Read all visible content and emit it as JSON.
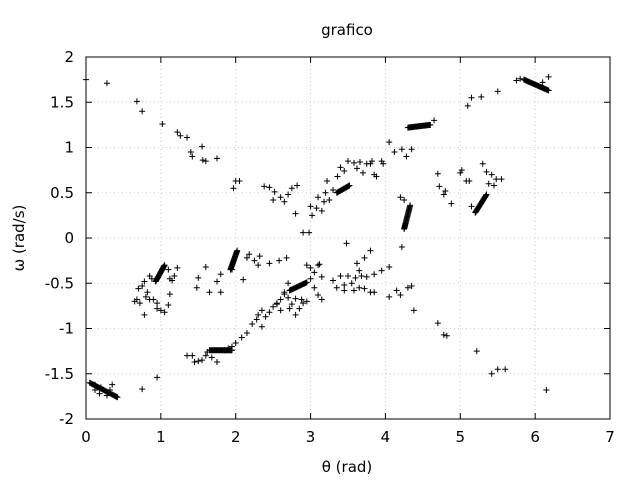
{
  "chart_data": {
    "type": "scatter",
    "title": "grafico",
    "xlabel": "θ (rad)",
    "ylabel": "ω (rad/s)",
    "xlim": [
      0,
      7
    ],
    "ylim": [
      -2,
      2
    ],
    "xticks": [
      "0",
      "1",
      "2",
      "3",
      "4",
      "5",
      "6",
      "7"
    ],
    "yticks": [
      "-2",
      "-1.5",
      "-1",
      "-0.5",
      "0",
      "0.5",
      "1",
      "1.5",
      "2"
    ],
    "grid": true,
    "marker": "plus",
    "clusters": [
      {
        "x0": 0.05,
        "y0": -1.6,
        "x1": 0.42,
        "y1": -1.76,
        "n": 30
      },
      {
        "x0": 0.93,
        "y0": -0.48,
        "x1": 1.05,
        "y1": -0.3,
        "n": 25
      },
      {
        "x0": 1.65,
        "y0": -1.24,
        "x1": 1.95,
        "y1": -1.24,
        "n": 28
      },
      {
        "x0": 1.93,
        "y0": -0.35,
        "x1": 2.02,
        "y1": -0.14,
        "n": 25
      },
      {
        "x0": 2.72,
        "y0": -0.58,
        "x1": 2.95,
        "y1": -0.49,
        "n": 20
      },
      {
        "x0": 3.35,
        "y0": 0.5,
        "x1": 3.52,
        "y1": 0.58,
        "n": 18
      },
      {
        "x0": 4.25,
        "y0": 0.1,
        "x1": 4.33,
        "y1": 0.36,
        "n": 25
      },
      {
        "x0": 4.3,
        "y0": 1.22,
        "x1": 4.6,
        "y1": 1.25,
        "n": 28
      },
      {
        "x0": 5.2,
        "y0": 0.28,
        "x1": 5.35,
        "y1": 0.48,
        "n": 25
      },
      {
        "x0": 5.85,
        "y0": 1.75,
        "x1": 6.18,
        "y1": 1.63,
        "n": 30
      }
    ],
    "points": [
      [
        0.0,
        1.75
      ],
      [
        0.28,
        1.71
      ],
      [
        0.68,
        1.51
      ],
      [
        0.75,
        1.4
      ],
      [
        1.02,
        1.26
      ],
      [
        1.22,
        1.17
      ],
      [
        1.26,
        1.13
      ],
      [
        1.35,
        1.11
      ],
      [
        1.4,
        0.95
      ],
      [
        1.42,
        0.9
      ],
      [
        1.55,
        1.01
      ],
      [
        1.56,
        0.86
      ],
      [
        1.6,
        0.85
      ],
      [
        1.75,
        0.88
      ],
      [
        1.97,
        0.55
      ],
      [
        2.0,
        0.63
      ],
      [
        2.05,
        0.63
      ],
      [
        2.38,
        0.57
      ],
      [
        2.45,
        0.56
      ],
      [
        2.52,
        0.51
      ],
      [
        2.6,
        0.45
      ],
      [
        2.7,
        0.48
      ],
      [
        2.75,
        0.55
      ],
      [
        2.82,
        0.58
      ],
      [
        2.5,
        0.42
      ],
      [
        2.65,
        0.4
      ],
      [
        2.8,
        0.27
      ],
      [
        2.9,
        0.06
      ],
      [
        2.98,
        0.06
      ],
      [
        3.0,
        0.35
      ],
      [
        3.02,
        0.25
      ],
      [
        3.08,
        0.33
      ],
      [
        3.1,
        0.45
      ],
      [
        3.15,
        0.3
      ],
      [
        3.18,
        0.4
      ],
      [
        3.2,
        0.5
      ],
      [
        3.22,
        0.63
      ],
      [
        3.25,
        0.42
      ],
      [
        3.3,
        0.53
      ],
      [
        3.36,
        0.68
      ],
      [
        3.4,
        0.78
      ],
      [
        3.45,
        0.74
      ],
      [
        3.5,
        0.85
      ],
      [
        3.58,
        0.83
      ],
      [
        3.62,
        0.77
      ],
      [
        3.66,
        0.84
      ],
      [
        3.7,
        0.72
      ],
      [
        3.75,
        0.82
      ],
      [
        3.8,
        0.82
      ],
      [
        3.82,
        0.85
      ],
      [
        3.85,
        0.7
      ],
      [
        3.88,
        0.68
      ],
      [
        3.95,
        0.85
      ],
      [
        3.97,
        0.82
      ],
      [
        4.05,
        1.06
      ],
      [
        4.12,
        0.95
      ],
      [
        4.22,
        0.98
      ],
      [
        4.28,
        0.9
      ],
      [
        4.35,
        0.98
      ],
      [
        4.65,
        1.3
      ],
      [
        4.7,
        0.71
      ],
      [
        4.72,
        0.57
      ],
      [
        4.78,
        0.48
      ],
      [
        4.8,
        0.52
      ],
      [
        4.88,
        0.38
      ],
      [
        5.0,
        0.72
      ],
      [
        5.02,
        0.75
      ],
      [
        5.08,
        0.63
      ],
      [
        5.12,
        0.63
      ],
      [
        5.1,
        1.46
      ],
      [
        5.15,
        1.55
      ],
      [
        5.28,
        1.56
      ],
      [
        5.5,
        1.62
      ],
      [
        5.3,
        0.82
      ],
      [
        5.35,
        0.73
      ],
      [
        5.42,
        0.7
      ],
      [
        5.48,
        0.65
      ],
      [
        5.55,
        0.65
      ],
      [
        5.45,
        0.58
      ],
      [
        5.38,
        0.6
      ],
      [
        5.15,
        0.35
      ],
      [
        4.2,
        0.45
      ],
      [
        4.25,
        0.42
      ],
      [
        4.22,
        -0.1
      ],
      [
        4.15,
        -0.58
      ],
      [
        4.2,
        -0.63
      ],
      [
        4.3,
        -0.55
      ],
      [
        4.35,
        -0.53
      ],
      [
        4.38,
        -0.8
      ],
      [
        4.05,
        -0.65
      ],
      [
        4.7,
        -0.94
      ],
      [
        4.78,
        -1.07
      ],
      [
        4.82,
        -1.08
      ],
      [
        5.22,
        -1.25
      ],
      [
        5.42,
        -1.5
      ],
      [
        5.5,
        -1.45
      ],
      [
        5.6,
        -1.45
      ],
      [
        6.15,
        -1.68
      ],
      [
        4.05,
        -0.32
      ],
      [
        3.95,
        -0.36
      ],
      [
        3.85,
        -0.4
      ],
      [
        3.75,
        -0.43
      ],
      [
        3.68,
        -0.42
      ],
      [
        3.65,
        -0.36
      ],
      [
        3.6,
        -0.44
      ],
      [
        3.55,
        -0.5
      ],
      [
        3.5,
        -0.42
      ],
      [
        3.45,
        -0.52
      ],
      [
        3.4,
        -0.42
      ],
      [
        3.35,
        -0.55
      ],
      [
        3.3,
        -0.47
      ],
      [
        3.45,
        -0.58
      ],
      [
        3.58,
        -0.58
      ],
      [
        3.65,
        -0.55
      ],
      [
        3.72,
        -0.56
      ],
      [
        3.8,
        -0.6
      ],
      [
        3.85,
        -0.6
      ],
      [
        3.62,
        -0.28
      ],
      [
        3.72,
        -0.22
      ],
      [
        3.8,
        -0.14
      ],
      [
        3.48,
        -0.06
      ],
      [
        3.12,
        -0.29
      ],
      [
        3.15,
        -0.43
      ],
      [
        3.1,
        -0.3
      ],
      [
        3.05,
        -0.38
      ],
      [
        3.0,
        -0.45
      ],
      [
        3.05,
        -0.55
      ],
      [
        3.1,
        -0.63
      ],
      [
        3.15,
        -0.68
      ],
      [
        2.95,
        -0.7
      ],
      [
        2.88,
        -0.68
      ],
      [
        2.8,
        -0.67
      ],
      [
        2.75,
        -0.73
      ],
      [
        2.7,
        -0.66
      ],
      [
        2.65,
        -0.62
      ],
      [
        2.6,
        -0.68
      ],
      [
        2.55,
        -0.73
      ],
      [
        2.5,
        -0.76
      ],
      [
        2.45,
        -0.82
      ],
      [
        2.4,
        -0.87
      ],
      [
        2.35,
        -0.8
      ],
      [
        2.3,
        -0.85
      ],
      [
        2.28,
        -0.9
      ],
      [
        2.22,
        -0.95
      ],
      [
        2.15,
        -1.05
      ],
      [
        2.08,
        -1.1
      ],
      [
        2.0,
        -1.16
      ],
      [
        1.95,
        -1.2
      ],
      [
        1.9,
        -1.22
      ],
      [
        1.85,
        -1.24
      ],
      [
        1.62,
        -1.26
      ],
      [
        1.6,
        -1.3
      ],
      [
        1.55,
        -1.35
      ],
      [
        1.5,
        -1.36
      ],
      [
        1.45,
        -1.37
      ],
      [
        1.42,
        -1.3
      ],
      [
        1.35,
        -1.3
      ],
      [
        1.68,
        -1.32
      ],
      [
        1.75,
        -1.37
      ],
      [
        2.35,
        -0.98
      ],
      [
        2.55,
        -0.72
      ],
      [
        2.6,
        -0.8
      ],
      [
        2.65,
        -0.6
      ],
      [
        2.7,
        -0.5
      ],
      [
        2.72,
        -0.78
      ],
      [
        2.8,
        -0.85
      ],
      [
        2.85,
        -0.78
      ],
      [
        2.9,
        -0.72
      ],
      [
        2.95,
        -0.3
      ],
      [
        3.0,
        -0.33
      ],
      [
        2.58,
        -0.25
      ],
      [
        2.68,
        -0.22
      ],
      [
        2.45,
        -0.28
      ],
      [
        2.32,
        -0.2
      ],
      [
        2.3,
        -0.3
      ],
      [
        2.15,
        -0.22
      ],
      [
        2.18,
        -0.18
      ],
      [
        2.1,
        -0.46
      ],
      [
        2.25,
        -0.25
      ],
      [
        1.95,
        -0.35
      ],
      [
        1.8,
        -0.4
      ],
      [
        1.75,
        -0.48
      ],
      [
        1.6,
        -0.32
      ],
      [
        1.5,
        -0.44
      ],
      [
        1.48,
        -0.55
      ],
      [
        1.65,
        -0.6
      ],
      [
        1.8,
        -0.6
      ],
      [
        1.22,
        -0.33
      ],
      [
        1.18,
        -0.42
      ],
      [
        1.15,
        -0.47
      ],
      [
        1.1,
        -0.35
      ],
      [
        1.12,
        -0.45
      ],
      [
        0.68,
        -0.68
      ],
      [
        0.7,
        -0.56
      ],
      [
        0.75,
        -0.53
      ],
      [
        0.78,
        -0.48
      ],
      [
        0.82,
        -0.6
      ],
      [
        0.85,
        -0.68
      ],
      [
        0.85,
        -0.42
      ],
      [
        0.78,
        -0.85
      ],
      [
        0.72,
        -0.72
      ],
      [
        0.65,
        -0.7
      ],
      [
        0.8,
        -0.65
      ],
      [
        0.9,
        -0.68
      ],
      [
        0.95,
        -0.72
      ],
      [
        0.95,
        -0.78
      ],
      [
        1.0,
        -0.8
      ],
      [
        1.05,
        -0.82
      ],
      [
        1.1,
        -0.74
      ],
      [
        1.12,
        -0.62
      ],
      [
        0.88,
        -0.45
      ],
      [
        0.75,
        -1.67
      ],
      [
        0.35,
        -1.62
      ],
      [
        0.12,
        -1.68
      ],
      [
        0.18,
        -1.72
      ],
      [
        0.95,
        -1.54
      ],
      [
        6.1,
        1.72
      ],
      [
        6.18,
        1.78
      ],
      [
        5.75,
        1.74
      ],
      [
        5.8,
        1.76
      ],
      [
        0.28,
        -1.74
      ],
      [
        0.32,
        -1.68
      ],
      [
        0.2,
        -1.65
      ],
      [
        0.12,
        -1.62
      ]
    ]
  }
}
